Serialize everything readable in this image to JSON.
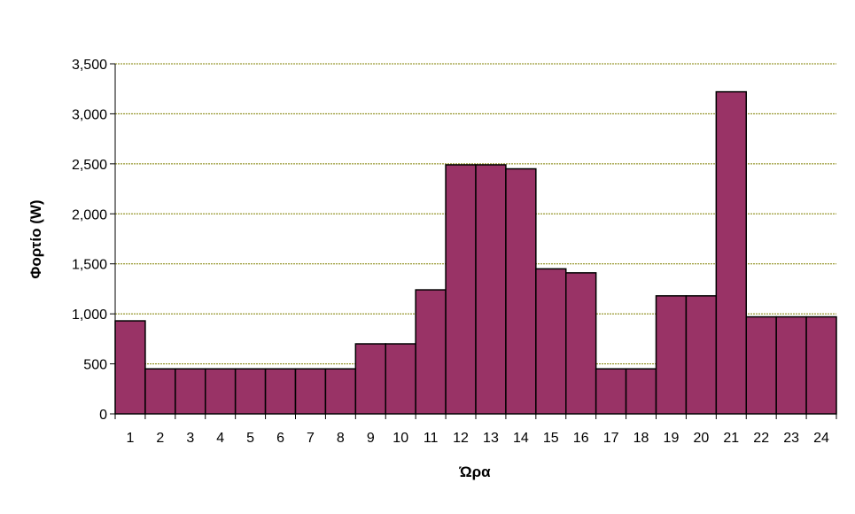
{
  "chart_data": {
    "type": "bar",
    "title": "",
    "xlabel": "Ώρα",
    "ylabel": "Φορτίο (W)",
    "categories": [
      "1",
      "2",
      "3",
      "4",
      "5",
      "6",
      "7",
      "8",
      "9",
      "10",
      "11",
      "12",
      "13",
      "14",
      "15",
      "16",
      "17",
      "18",
      "19",
      "20",
      "21",
      "22",
      "23",
      "24"
    ],
    "values": [
      930,
      450,
      450,
      450,
      450,
      450,
      450,
      450,
      700,
      700,
      1240,
      2490,
      2490,
      2450,
      1450,
      1410,
      450,
      450,
      1180,
      1180,
      3220,
      970,
      970,
      970
    ],
    "ylim": [
      0,
      3500
    ],
    "yticks": [
      0,
      500,
      1000,
      1500,
      2000,
      2500,
      3000,
      3500
    ],
    "ytick_labels": [
      "0",
      "500",
      "1,000",
      "1,500",
      "2,000",
      "2,500",
      "3,000",
      "3,500"
    ],
    "grid": true,
    "legend": "none",
    "colors": {
      "bar_fill": "#993366",
      "bar_stroke": "#000000",
      "gridline": "#808000",
      "axis": "#000000"
    }
  }
}
